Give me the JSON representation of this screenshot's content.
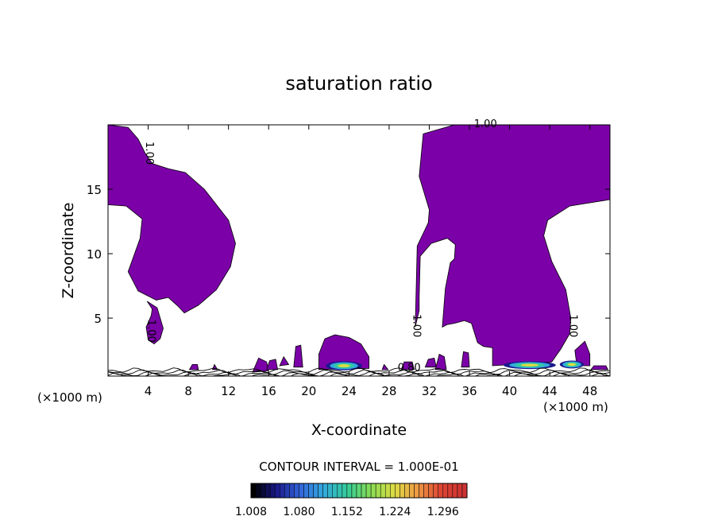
{
  "chart_data": {
    "type": "heatmap",
    "title": "saturation ratio",
    "xlabel": "X-coordinate",
    "ylabel": "Z-coordinate",
    "x_unit": "(×1000 m)",
    "x_unit_right": "(×1000 m)",
    "xlim": [
      0,
      50
    ],
    "ylim": [
      0.5,
      20
    ],
    "x_ticks": [
      4,
      8,
      12,
      16,
      20,
      24,
      28,
      32,
      36,
      40,
      44,
      48
    ],
    "y_ticks": [
      5,
      10,
      15
    ],
    "contour_labels": [
      {
        "text": "1.00",
        "x": 3.8,
        "y": 17.8
      },
      {
        "text": "1.00",
        "x": 37.6,
        "y": 19.8
      },
      {
        "text": "1.00",
        "x": 4.0,
        "y": 4.0
      },
      {
        "text": "1.00",
        "x": 30.4,
        "y": 4.4
      },
      {
        "text": "1.00",
        "x": 46.0,
        "y": 4.4
      },
      {
        "text": "0.80",
        "x": 30.0,
        "y": 0.9
      }
    ],
    "contour_interval": "CONTOUR INTERVAL = 1.000E-01",
    "colorbar": {
      "min": 1.008,
      "max": 1.332,
      "labels": [
        "1.008",
        "1.080",
        "1.152",
        "1.224",
        "1.296"
      ],
      "colors": [
        "#000000",
        "#1a1a8c",
        "#3366dd",
        "#33aadd",
        "#33cc99",
        "#88dd55",
        "#dddd44",
        "#ee9944",
        "#dd4433",
        "#cc3333"
      ]
    },
    "fill_color": "#7b00a8"
  }
}
